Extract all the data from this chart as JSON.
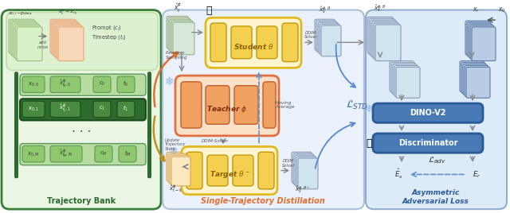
{
  "section1_bg": "#eaf5e4",
  "section1_border": "#3a7d3a",
  "section2_bg": "#eaf1fb",
  "section2_border": "#aac0d8",
  "section3_bg": "#ddeaf8",
  "section3_border": "#90afd0",
  "green_dark": "#2d6a2d",
  "green_row_light": "#b8dca0",
  "green_row_dark": "#2d6a2d",
  "green_cell_light": "#90c870",
  "green_cell_dark": "#4a9040",
  "orange_bg": "#fde0c8",
  "orange_border": "#e07040",
  "orange_inner": "#f0a060",
  "yellow_bg": "#fef5d0",
  "yellow_border": "#e0b820",
  "yellow_inner": "#f5d050",
  "blue_box": "#4a7ab5",
  "blue_border": "#2a5a95",
  "stack_green_face": "#d0e8f0",
  "stack_green_edge": "#7090b0",
  "stack_blue_face": "#b8cce4",
  "stack_blue_edge": "#5070a0",
  "stack_gray_face": "#e0e8d8",
  "stack_gray_edge": "#90a880",
  "title1": "Trajectory Bank",
  "title2": "Single-Trajectory Distillation",
  "title3": "Asymmetric\nAdversarial Loss",
  "title1_color": "#2d6a2d",
  "title2_color": "#e07030",
  "title3_color": "#2a5a95"
}
